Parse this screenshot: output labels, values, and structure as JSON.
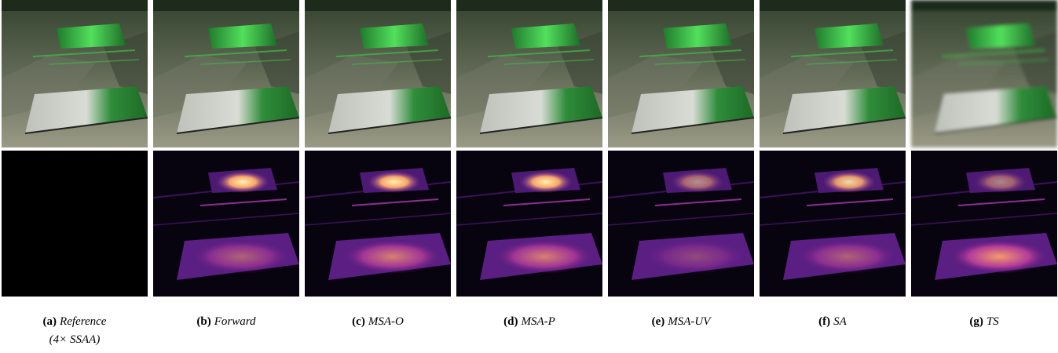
{
  "figure": {
    "panels": [
      {
        "label": "(a)",
        "name": "Reference",
        "note": "(4× SSAA)"
      },
      {
        "label": "(b)",
        "name": "Forward"
      },
      {
        "label": "(c)",
        "name": "MSA-O"
      },
      {
        "label": "(d)",
        "name": "MSA-P"
      },
      {
        "label": "(e)",
        "name": "MSA-UV"
      },
      {
        "label": "(f)",
        "name": "SA"
      },
      {
        "label": "(g)",
        "name": "TS"
      }
    ]
  }
}
